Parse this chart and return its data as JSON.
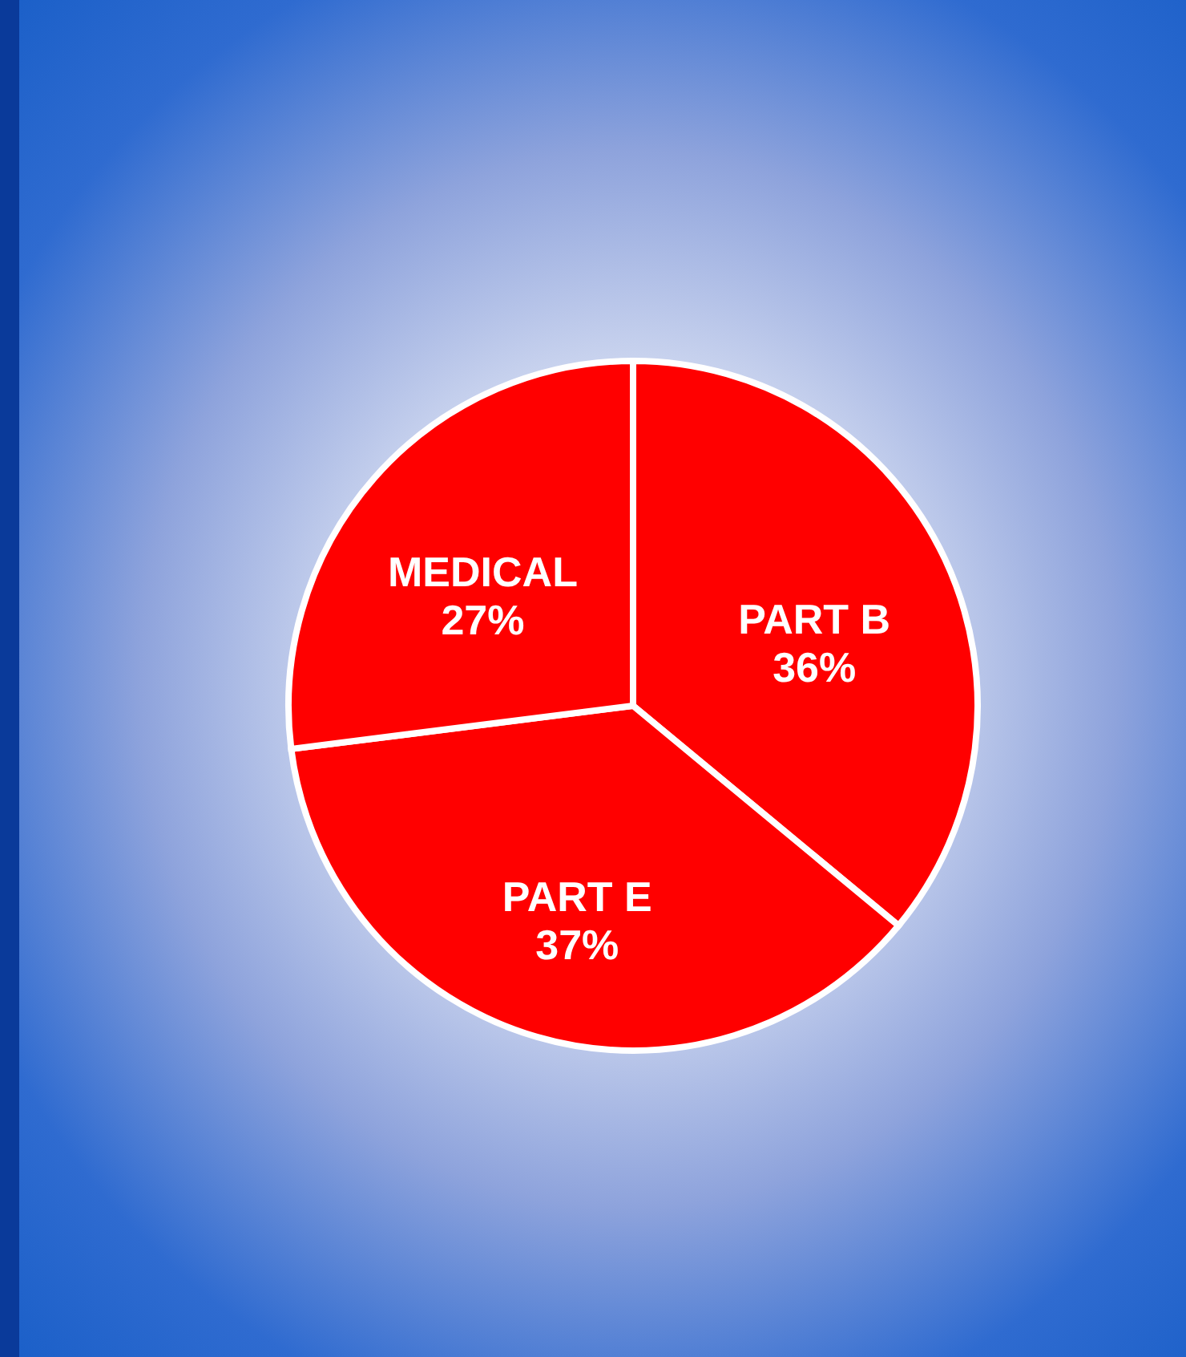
{
  "chart_data": {
    "type": "pie",
    "categories": [
      "PART B",
      "PART E",
      "MEDICAL"
    ],
    "values": [
      36,
      37,
      27
    ],
    "value_labels": [
      "36%",
      "37%",
      "27%"
    ],
    "colors": [
      "#ff0000",
      "#ff0000",
      "#ff0000"
    ]
  }
}
